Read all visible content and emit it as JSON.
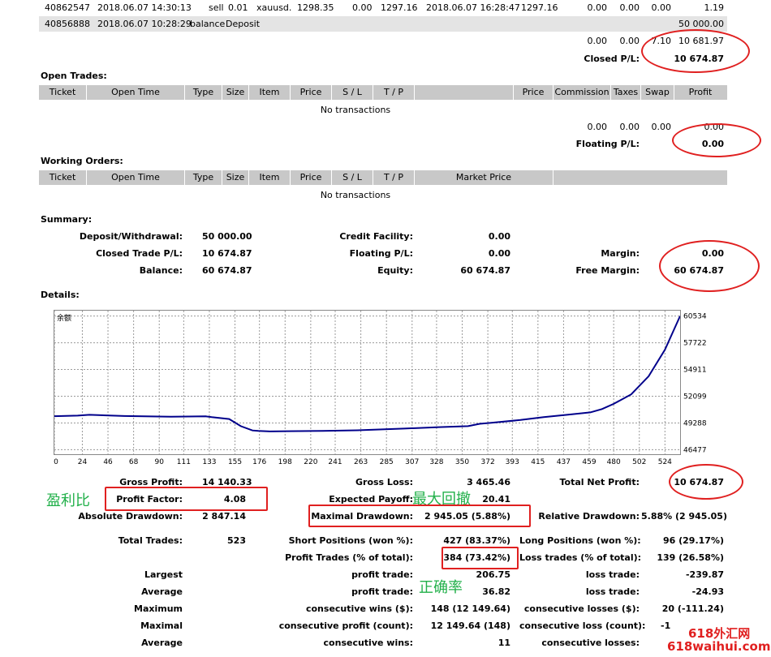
{
  "closed_trades": {
    "row1": {
      "ticket": "40862547",
      "time": "2018.06.07 14:30:13",
      "type": "sell",
      "size": "0.01",
      "item": "xauusd.",
      "price": "1298.35",
      "sl": "0.00",
      "tp": "1297.16",
      "close_time": "2018.06.07 16:28:47",
      "close_price": "1297.16",
      "commission": "0.00",
      "taxes": "0.00",
      "swap": "0.00",
      "profit": "1.19"
    },
    "row2": {
      "ticket": "40856888",
      "time": "2018.06.07 10:28:29",
      "type": "balance",
      "desc": "Deposit",
      "profit": "50 000.00"
    },
    "totals": {
      "commission": "0.00",
      "taxes": "0.00",
      "swap": "7.10",
      "profit": "10 681.97"
    },
    "pl_label": "Closed P/L:",
    "pl_value": "10 674.87"
  },
  "open_trades": {
    "title": "Open Trades:",
    "headers": [
      "Ticket",
      "Open Time",
      "Type",
      "Size",
      "Item",
      "Price",
      "S / L",
      "T / P",
      "",
      "Price",
      "Commission",
      "Taxes",
      "Swap",
      "Profit"
    ],
    "empty": "No transactions",
    "totals": {
      "commission": "0.00",
      "taxes": "0.00",
      "swap": "0.00",
      "profit": "0.00"
    },
    "pl_label": "Floating P/L:",
    "pl_value": "0.00"
  },
  "working_orders": {
    "title": "Working Orders:",
    "headers": [
      "Ticket",
      "Open Time",
      "Type",
      "Size",
      "Item",
      "Price",
      "S / L",
      "T / P",
      "Market Price",
      ""
    ],
    "empty": "No transactions"
  },
  "summary": {
    "title": "Summary:",
    "deposit_label": "Deposit/Withdrawal:",
    "deposit_value": "50 000.00",
    "credit_label": "Credit Facility:",
    "credit_value": "0.00",
    "closed_label": "Closed Trade P/L:",
    "closed_value": "10 674.87",
    "floating_label": "Floating P/L:",
    "floating_value": "0.00",
    "margin_label": "Margin:",
    "margin_value": "0.00",
    "balance_label": "Balance:",
    "balance_value": "60 674.87",
    "equity_label": "Equity:",
    "equity_value": "60 674.87",
    "free_margin_label": "Free Margin:",
    "free_margin_value": "60 674.87"
  },
  "details": {
    "title": "Details:",
    "chart_label": "余额"
  },
  "stats": {
    "gross_profit_label": "Gross Profit:",
    "gross_profit": "14 140.33",
    "gross_loss_label": "Gross Loss:",
    "gross_loss": "3 465.46",
    "total_net_label": "Total Net Profit:",
    "total_net": "10 674.87",
    "profit_factor_label": "Profit Factor:",
    "profit_factor": "4.08",
    "expected_payoff_label": "Expected Payoff:",
    "expected_payoff": "20.41",
    "abs_dd_label": "Absolute Drawdown:",
    "abs_dd": "2 847.14",
    "max_dd_label": "Maximal Drawdown:",
    "max_dd": "2 945.05 (5.88%)",
    "rel_dd_label": "Relative Drawdown:",
    "rel_dd": "5.88% (2 945.05)",
    "total_trades_label": "Total Trades:",
    "total_trades": "523",
    "short_label": "Short Positions (won %):",
    "short": "427 (83.37%)",
    "long_label": "Long Positions (won %):",
    "long": "96 (29.17%)",
    "profit_trades_label": "Profit Trades (% of total):",
    "profit_trades": "384 (73.42%)",
    "loss_trades_label": "Loss trades (% of total):",
    "loss_trades": "139 (26.58%)",
    "largest_label": "Largest",
    "largest_profit_label": "profit trade:",
    "largest_profit": "206.75",
    "largest_loss_label": "loss trade:",
    "largest_loss": "-239.87",
    "average_label": "Average",
    "average_profit_label": "profit trade:",
    "average_profit": "36.82",
    "average_loss_label": "loss trade:",
    "average_loss": "-24.93",
    "maximum_label": "Maximum",
    "cons_wins_money_label": "consecutive wins ($):",
    "cons_wins_money": "148 (12 149.64)",
    "cons_losses_money_label": "consecutive losses ($):",
    "cons_losses_money": "20 (-111.24)",
    "maximal_label": "Maximal",
    "cons_profit_label": "consecutive profit (count):",
    "cons_profit": "12 149.64 (148)",
    "cons_loss_label": "consecutive loss (count):",
    "cons_loss": "-1",
    "average2_label": "Average",
    "avg_cons_wins_label": "consecutive wins:",
    "avg_cons_wins": "11",
    "avg_cons_losses_label": "consecutive losses:"
  },
  "annotations": {
    "profit_factor": "盈利比",
    "max_drawdown": "最大回撤",
    "accuracy": "正确率",
    "watermark_line1": "618外汇网",
    "watermark_line2": "618waihui.com"
  },
  "colors": {
    "header_bg": "#c8c8c8",
    "line": "#00008b",
    "annot": "#22b04a",
    "highlight": "#e02020"
  },
  "chart_data": {
    "type": "line",
    "title": "余额",
    "x_ticks": [
      0,
      24,
      46,
      68,
      90,
      111,
      133,
      155,
      176,
      198,
      220,
      241,
      263,
      285,
      307,
      328,
      350,
      372,
      393,
      415,
      437,
      459,
      480,
      502,
      524
    ],
    "y_ticks": [
      46477,
      49288,
      52099,
      54911,
      57722,
      60534
    ],
    "xlim": [
      0,
      537
    ],
    "ylim": [
      46000,
      61100
    ],
    "grid": true,
    "series": [
      {
        "x": [
          0,
          20,
          30,
          60,
          100,
          130,
          135,
          150,
          160,
          170,
          175,
          185,
          200,
          230,
          260,
          300,
          330,
          355,
          365,
          375,
          400,
          420,
          440,
          460,
          470,
          480,
          495,
          510,
          524,
          537
        ],
        "y": [
          50000,
          50060,
          50150,
          50020,
          49950,
          49980,
          49900,
          49700,
          48950,
          48500,
          48450,
          48400,
          48420,
          48460,
          48520,
          48700,
          48850,
          48950,
          49200,
          49300,
          49600,
          49900,
          50150,
          50400,
          50750,
          51300,
          52300,
          54200,
          57000,
          60534
        ]
      }
    ]
  }
}
